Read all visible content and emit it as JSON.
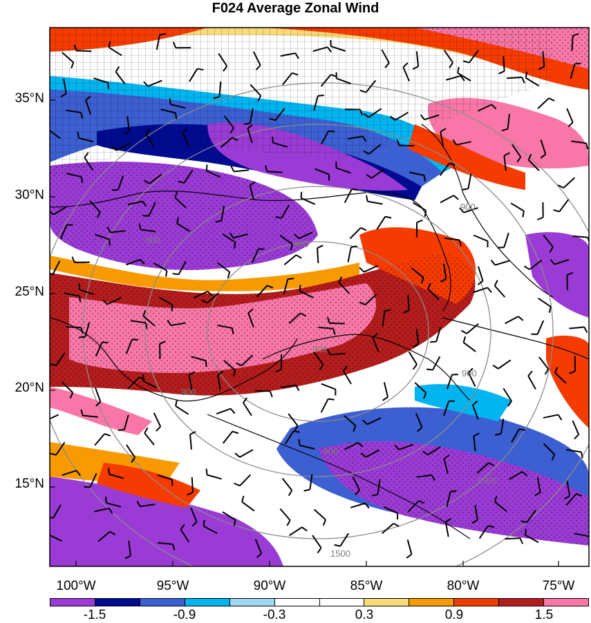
{
  "title": "F024 Average Zonal Wind",
  "lat_labels": [
    "35°N",
    "30°N",
    "25°N",
    "20°N",
    "15°N"
  ],
  "lon_labels": [
    "100°W",
    "95°W",
    "90°W",
    "85°W",
    "80°W",
    "75°W"
  ],
  "colorbar": {
    "colors": [
      "#9b3bd6",
      "#000b8f",
      "#3c5fd1",
      "#00b4f0",
      "#9ed7f0",
      "#ffffff",
      "#ffffff",
      "#f9da7a",
      "#f79a00",
      "#f53b00",
      "#b51d1d",
      "#f977a8"
    ],
    "labels": [
      "-1.5",
      "-0.9",
      "-0.3",
      "0.3",
      "0.9",
      "1.5"
    ]
  },
  "contour_labels": [
    "900",
    "900",
    "900",
    "900",
    "900",
    "900",
    "900",
    "1500",
    "1500"
  ]
}
